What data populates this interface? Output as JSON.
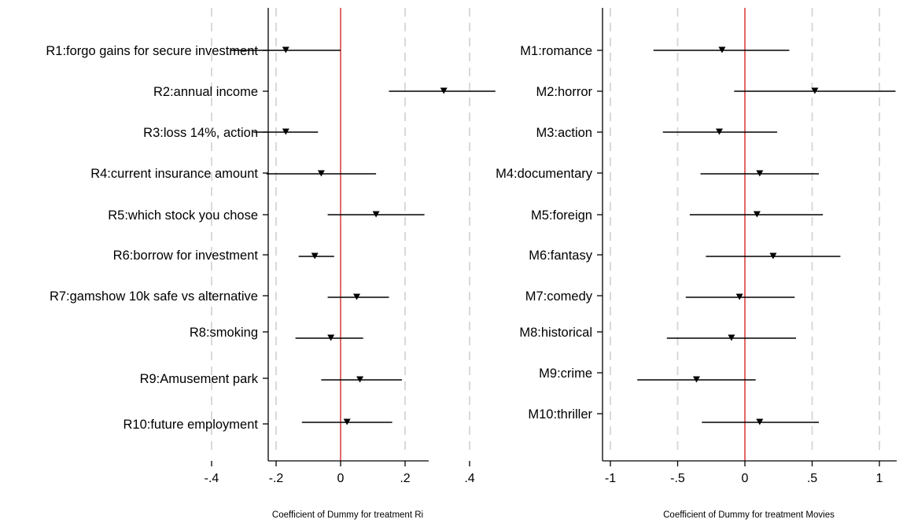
{
  "chart_data": [
    {
      "type": "scatter",
      "subtype": "coefficient-plot-with-confidence-intervals",
      "title": "",
      "xlabel": "Coefficient of Dummy for treatment Ri",
      "ylabel": "",
      "xlim": [
        -0.45,
        0.55
      ],
      "x_ticks": [
        {
          "value": -0.4,
          "label": "-.4"
        },
        {
          "value": -0.2,
          "label": "-.2"
        },
        {
          "value": 0,
          "label": "0"
        },
        {
          "value": 0.2,
          "label": ".2"
        },
        {
          "value": 0.4,
          "label": ".4"
        }
      ],
      "reference_line": {
        "x": 0,
        "color": "#d62728"
      },
      "grid": "vertical dashed",
      "marker": "triangle-down",
      "series": [
        {
          "label": "R1:forgo gains for secure investment",
          "coef": -0.17,
          "ci": [
            -0.34,
            0.0
          ]
        },
        {
          "label": "R2:annual income",
          "coef": 0.32,
          "ci": [
            0.15,
            0.48
          ]
        },
        {
          "label": "R3:loss 14%, action",
          "coef": -0.17,
          "ci": [
            -0.27,
            -0.07
          ]
        },
        {
          "label": "R4:current insurance amount",
          "coef": -0.06,
          "ci": [
            -0.23,
            0.11
          ]
        },
        {
          "label": "R5:which stock you chose",
          "coef": 0.11,
          "ci": [
            -0.04,
            0.26
          ]
        },
        {
          "label": "R6:borrow for investment",
          "coef": -0.08,
          "ci": [
            -0.13,
            -0.02
          ]
        },
        {
          "label": "R7:gamshow 10k safe vs alternative",
          "coef": 0.05,
          "ci": [
            -0.04,
            0.15
          ]
        },
        {
          "label": "R8:smoking",
          "coef": -0.03,
          "ci": [
            -0.14,
            0.07
          ]
        },
        {
          "label": "R9:Amusement park",
          "coef": 0.06,
          "ci": [
            -0.06,
            0.19
          ]
        },
        {
          "label": "R10:future employment",
          "coef": 0.02,
          "ci": [
            -0.12,
            0.16
          ]
        }
      ]
    },
    {
      "type": "scatter",
      "subtype": "coefficient-plot-with-confidence-intervals",
      "title": "",
      "xlabel": "Coefficient of Dummy for treatment Movies",
      "ylabel": "",
      "xlim": [
        -1.1,
        1.12
      ],
      "x_ticks": [
        {
          "value": -1,
          "label": "-1"
        },
        {
          "value": -0.5,
          "label": "-.5"
        },
        {
          "value": 0,
          "label": "0"
        },
        {
          "value": 0.5,
          "label": ".5"
        },
        {
          "value": 1,
          "label": "1"
        }
      ],
      "reference_line": {
        "x": 0,
        "color": "#d62728"
      },
      "grid": "vertical dashed",
      "marker": "triangle-down",
      "series": [
        {
          "label": "M1:romance",
          "coef": -0.17,
          "ci": [
            -0.68,
            0.33
          ]
        },
        {
          "label": "M2:horror",
          "coef": 0.52,
          "ci": [
            -0.08,
            1.12
          ]
        },
        {
          "label": "M3:action",
          "coef": -0.19,
          "ci": [
            -0.61,
            0.24
          ]
        },
        {
          "label": "M4:documentary",
          "coef": 0.11,
          "ci": [
            -0.33,
            0.55
          ]
        },
        {
          "label": "M5:foreign",
          "coef": 0.09,
          "ci": [
            -0.41,
            0.58
          ]
        },
        {
          "label": "M6:fantasy",
          "coef": 0.21,
          "ci": [
            -0.29,
            0.71
          ]
        },
        {
          "label": "M7:comedy",
          "coef": -0.04,
          "ci": [
            -0.44,
            0.37
          ]
        },
        {
          "label": "M8:historical",
          "coef": -0.1,
          "ci": [
            -0.58,
            0.38
          ]
        },
        {
          "label": "M9:crime",
          "coef": -0.36,
          "ci": [
            -0.8,
            0.08
          ]
        },
        {
          "label": "M10:thriller",
          "coef": 0.11,
          "ci": [
            -0.32,
            0.55
          ]
        }
      ]
    }
  ]
}
